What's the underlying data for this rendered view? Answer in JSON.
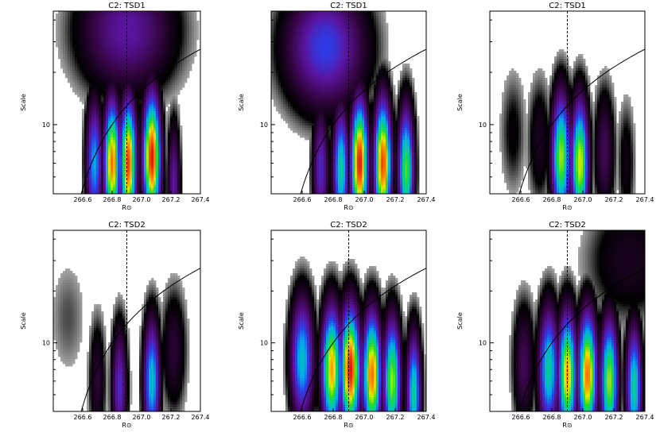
{
  "chart_data": [
    {
      "type": "heatmap",
      "title": "C2: TSD1",
      "xlabel": "R⊙",
      "ylabel": "Scale",
      "xlim": [
        266.4,
        267.4
      ],
      "x_ticks": [
        "266.6",
        "266.8",
        "267.0",
        "267.2",
        "267.4"
      ],
      "y_ticks": [
        "10"
      ],
      "dashed_line_x": 266.9,
      "features": [
        {
          "x": 266.68,
          "scale": 6.0,
          "peak": 0.5
        },
        {
          "x": 266.8,
          "scale": 6.0,
          "peak": 0.9
        },
        {
          "x": 266.91,
          "scale": 6.0,
          "peak": 0.95
        },
        {
          "x": 267.07,
          "scale": 6.5,
          "peak": 1.0
        },
        {
          "x": 267.22,
          "scale": 4.5,
          "peak": 0.3
        },
        {
          "x": 266.9,
          "scale": 35.0,
          "peak": 0.3
        }
      ]
    },
    {
      "type": "heatmap",
      "title": "C2: TSD1",
      "xlabel": "R⊙",
      "ylabel": "Scale",
      "xlim": [
        266.4,
        267.4
      ],
      "x_ticks": [
        "266.6",
        "266.8",
        "267.0",
        "267.2",
        "267.4"
      ],
      "y_ticks": [
        "10"
      ],
      "dashed_line_x": 266.9,
      "features": [
        {
          "x": 266.72,
          "scale": 5.5,
          "peak": 0.35
        },
        {
          "x": 266.85,
          "scale": 5.5,
          "peak": 0.6
        },
        {
          "x": 266.97,
          "scale": 6.0,
          "peak": 1.0
        },
        {
          "x": 267.12,
          "scale": 6.0,
          "peak": 0.95
        },
        {
          "x": 267.27,
          "scale": 5.5,
          "peak": 0.7
        },
        {
          "x": 266.75,
          "scale": 28.0,
          "peak": 0.4
        }
      ]
    },
    {
      "type": "heatmap",
      "title": "C2: TSD1",
      "xlabel": "R⊙",
      "ylabel": "Scale",
      "xlim": [
        266.4,
        267.4
      ],
      "x_ticks": [
        "266.6",
        "266.8",
        "267.0",
        "267.2",
        "267.4"
      ],
      "y_ticks": [
        "10"
      ],
      "dashed_line_x": 266.9,
      "features": [
        {
          "x": 266.55,
          "scale": 9.0,
          "peak": 0.08
        },
        {
          "x": 266.72,
          "scale": 8.0,
          "peak": 0.12
        },
        {
          "x": 266.86,
          "scale": 6.5,
          "peak": 0.75
        },
        {
          "x": 266.98,
          "scale": 6.0,
          "peak": 0.8
        },
        {
          "x": 267.14,
          "scale": 7.0,
          "peak": 0.2
        },
        {
          "x": 267.28,
          "scale": 6.0,
          "peak": 0.1
        }
      ]
    },
    {
      "type": "heatmap",
      "title": "C2: TSD2",
      "xlabel": "R⊙",
      "ylabel": "Scale",
      "xlim": [
        266.4,
        267.4
      ],
      "x_ticks": [
        "266.6",
        "266.8",
        "267.0",
        "267.2",
        "267.4"
      ],
      "y_ticks": [
        "10"
      ],
      "dashed_line_x": 266.9,
      "features": [
        {
          "x": 266.5,
          "scale": 14.0,
          "peak": 0.05
        },
        {
          "x": 266.7,
          "scale": 6.0,
          "peak": 0.15
        },
        {
          "x": 266.85,
          "scale": 5.5,
          "peak": 0.35
        },
        {
          "x": 267.07,
          "scale": 6.0,
          "peak": 0.55
        },
        {
          "x": 267.22,
          "scale": 9.0,
          "peak": 0.15
        }
      ]
    },
    {
      "type": "heatmap",
      "title": "C2: TSD2",
      "xlabel": "R⊙",
      "ylabel": "Scale",
      "xlim": [
        266.4,
        267.4
      ],
      "x_ticks": [
        "266.6",
        "266.8",
        "267.0",
        "267.2",
        "267.4"
      ],
      "y_ticks": [
        "10"
      ],
      "dashed_line_x": 266.9,
      "features": [
        {
          "x": 266.6,
          "scale": 8.0,
          "peak": 0.55
        },
        {
          "x": 266.79,
          "scale": 7.0,
          "peak": 0.85
        },
        {
          "x": 266.91,
          "scale": 7.0,
          "peak": 1.0
        },
        {
          "x": 267.05,
          "scale": 6.5,
          "peak": 0.9
        },
        {
          "x": 267.18,
          "scale": 6.0,
          "peak": 0.75
        },
        {
          "x": 267.32,
          "scale": 5.0,
          "peak": 0.6
        }
      ]
    },
    {
      "type": "heatmap",
      "title": "C2: TSD2",
      "xlabel": "R⊙",
      "ylabel": "Scale",
      "xlim": [
        266.4,
        267.4
      ],
      "x_ticks": [
        "266.6",
        "266.8",
        "267.0",
        "267.2",
        "267.4"
      ],
      "y_ticks": [
        "10"
      ],
      "dashed_line_x": 266.9,
      "features": [
        {
          "x": 266.62,
          "scale": 7.5,
          "peak": 0.2
        },
        {
          "x": 266.78,
          "scale": 7.0,
          "peak": 0.6
        },
        {
          "x": 266.9,
          "scale": 6.5,
          "peak": 0.85
        },
        {
          "x": 267.03,
          "scale": 6.5,
          "peak": 0.9
        },
        {
          "x": 267.17,
          "scale": 6.0,
          "peak": 0.75
        },
        {
          "x": 267.33,
          "scale": 5.5,
          "peak": 0.6
        },
        {
          "x": 267.3,
          "scale": 30.0,
          "peak": 0.12
        }
      ]
    }
  ]
}
